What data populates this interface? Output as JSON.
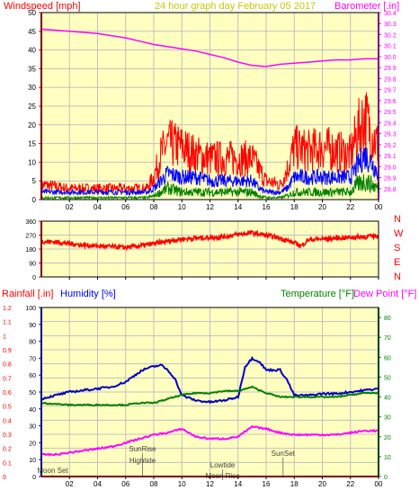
{
  "header": {
    "left_label": "Windspeed [mph]",
    "center_label": "24 hour graph day   February 05 2017",
    "right_label": "Barometer [.in]"
  },
  "colors": {
    "plot_bg": "#ffffc0",
    "grid": "#c0c0c0",
    "border": "#000000",
    "wind_axis": "#ff0000",
    "baro_axis": "#ff00ff",
    "title": "#c8c800",
    "wind_max": "#ff0000",
    "wind_avg": "#0000ff",
    "wind_min": "#008000",
    "barometer": "#ff00ff",
    "direction": "#ff0000",
    "humidity": "#0000c0",
    "temperature": "#008000",
    "dewpoint": "#ff00ff",
    "rainfall": "#ff0000",
    "bottom_axis_left": "#0000ff",
    "bottom_axis_right": "#008000",
    "event": "#000000"
  },
  "x_ticks": [
    "02",
    "04",
    "06",
    "08",
    "10",
    "12",
    "14",
    "16",
    "18",
    "20",
    "22",
    "00"
  ],
  "chart_data": [
    {
      "type": "line",
      "series": [
        {
          "name": "Windspeed",
          "axis": "wind",
          "x": [
            0,
            2,
            4,
            6,
            7.5,
            8,
            8.5,
            9,
            10,
            11,
            12,
            13,
            14,
            15,
            15.5,
            16,
            17,
            17.5,
            18,
            19,
            20,
            21,
            22,
            22.5,
            23,
            23.5,
            24
          ],
          "values": [
            4,
            3,
            3,
            3,
            3,
            6,
            12,
            15,
            14,
            12,
            11,
            11,
            11,
            11,
            8,
            5,
            4,
            8,
            14,
            13,
            14,
            13,
            12,
            18,
            22,
            18,
            14
          ]
        },
        {
          "name": "Windspeed",
          "axis": "wind",
          "x": [
            0,
            2,
            4,
            6,
            7.5,
            8,
            8.5,
            9,
            10,
            11,
            12,
            13,
            14,
            15,
            15.5,
            16,
            17,
            17.5,
            18,
            19,
            20,
            21,
            22,
            22.5,
            23,
            23.5,
            24
          ],
          "values": [
            2,
            2,
            2,
            2,
            2,
            3,
            5,
            7,
            6,
            6,
            5,
            5,
            5,
            5,
            3,
            2,
            2,
            3,
            6,
            6,
            6,
            6,
            6,
            9,
            12,
            10,
            7
          ]
        },
        {
          "name": "Windspeed",
          "axis": "wind",
          "x": [
            0,
            2,
            4,
            6,
            7.5,
            8,
            8.5,
            9,
            10,
            11,
            12,
            13,
            14,
            15,
            15.5,
            16,
            17,
            17.5,
            18,
            19,
            20,
            21,
            22,
            22.5,
            23,
            23.5,
            24
          ],
          "values": [
            0.5,
            0.5,
            0.5,
            0.5,
            0.5,
            1,
            2,
            3,
            2,
            2,
            2,
            2,
            2,
            2,
            1,
            0.5,
            0.5,
            1,
            2,
            2,
            2,
            2,
            2,
            4,
            5,
            4,
            3
          ]
        },
        {
          "name": "Barometer",
          "axis": "baro",
          "x": [
            0,
            1,
            2,
            3,
            4,
            5,
            6,
            7,
            8,
            9,
            10,
            11,
            12,
            13,
            14,
            15,
            16,
            17,
            18,
            19,
            20,
            21,
            22,
            23,
            24
          ],
          "values": [
            30.25,
            30.24,
            30.23,
            30.22,
            30.21,
            30.19,
            30.17,
            30.14,
            30.11,
            30.09,
            30.07,
            30.05,
            30.02,
            29.99,
            29.95,
            29.92,
            29.91,
            29.93,
            29.94,
            29.95,
            29.96,
            29.97,
            29.97,
            29.98,
            29.98
          ]
        }
      ],
      "axes": {
        "wind": {
          "label": "Windspeed [mph]",
          "ylim": [
            0,
            50
          ],
          "ticks": [
            0,
            5,
            10,
            15,
            20,
            25,
            30,
            35,
            40,
            45,
            50
          ]
        },
        "baro": {
          "label": "Barometer [.in]",
          "ylim": [
            28.7,
            30.4
          ],
          "ticks": [
            28.8,
            28.9,
            29.0,
            29.1,
            29.2,
            29.3,
            29.4,
            29.5,
            29.6,
            29.7,
            29.8,
            29.9,
            30.0,
            30.1,
            30.2,
            30.3,
            30.4
          ]
        },
        "xlim": [
          0,
          24
        ]
      }
    },
    {
      "type": "line",
      "series": [
        {
          "name": "Wind direction",
          "x": [
            0,
            1,
            2,
            3,
            4,
            5,
            6,
            7,
            8,
            9,
            10,
            11,
            12,
            13,
            14,
            15,
            16,
            17,
            18,
            18.5,
            19,
            20,
            21,
            22,
            23,
            24
          ],
          "values": [
            230,
            225,
            215,
            205,
            200,
            195,
            190,
            200,
            215,
            230,
            245,
            250,
            255,
            260,
            275,
            285,
            270,
            250,
            220,
            200,
            240,
            245,
            250,
            255,
            260,
            265
          ]
        }
      ],
      "axes": {
        "ylim": [
          0,
          360
        ],
        "ticks": [
          0,
          90,
          180,
          270,
          360
        ],
        "right_labels": [
          "N",
          "W",
          "S",
          "E",
          "N"
        ],
        "xlim": [
          0,
          24
        ]
      }
    },
    {
      "type": "line",
      "series": [
        {
          "name": "Humidity",
          "axis": "left",
          "x": [
            0,
            1,
            2,
            3,
            4,
            5,
            6,
            7,
            7.5,
            8,
            8.5,
            9,
            9.5,
            10,
            11,
            12,
            13,
            14,
            14.5,
            15,
            15.5,
            16,
            17,
            17.5,
            18,
            19,
            20,
            21,
            22,
            23,
            24
          ],
          "values": [
            46,
            48,
            50,
            51,
            52,
            53,
            56,
            62,
            64,
            65,
            66,
            63,
            58,
            48,
            45,
            44,
            45,
            47,
            65,
            70,
            68,
            63,
            63,
            57,
            48,
            48,
            49,
            49,
            50,
            51,
            52
          ]
        },
        {
          "name": "Temperature",
          "axis": "right",
          "x": [
            0,
            2,
            4,
            6,
            7,
            8,
            9,
            10,
            11,
            12,
            13,
            14,
            15,
            16,
            17,
            18,
            19,
            20,
            21,
            22,
            23,
            24
          ],
          "values": [
            37,
            36,
            36,
            36,
            37,
            37,
            39,
            41,
            42,
            42,
            43,
            43,
            45,
            42,
            40,
            40,
            40,
            40,
            40,
            41,
            42,
            42
          ]
        },
        {
          "name": "Dew Point",
          "axis": "right",
          "x": [
            0,
            1,
            2,
            3,
            4,
            5,
            6,
            7,
            8,
            9,
            10,
            11,
            12,
            13,
            14,
            15,
            16,
            17,
            18,
            19,
            20,
            21,
            22,
            23,
            24
          ],
          "values": [
            11,
            11,
            12,
            13,
            14,
            15,
            17,
            19,
            21,
            22,
            24,
            20,
            19,
            19,
            20,
            25,
            24,
            22,
            21,
            21,
            21,
            21,
            22,
            23,
            23
          ]
        },
        {
          "name": "Rainfall",
          "axis": "left",
          "x": [
            0,
            24
          ],
          "values": [
            0,
            0
          ]
        }
      ],
      "axes": {
        "left": {
          "label_rain": "Rainfall [.in]",
          "label_hum": "Humidity [%]",
          "ticks": [
            0,
            0.1,
            0.2,
            0.3,
            0.4,
            0.5,
            0.6,
            0.7,
            0.8,
            0.9,
            1,
            1.1,
            1.2
          ],
          "tick_labels": [
            "0",
            "0.1",
            "0.2",
            "0.3",
            "0.4",
            "0.5",
            "0.6",
            "0.7",
            "0.8",
            "0.9",
            "1",
            "1.1",
            "1.2"
          ],
          "hum_ticks": [
            0,
            10,
            20,
            30,
            40,
            50,
            60,
            70,
            80,
            90,
            100
          ],
          "ylim": [
            0,
            100
          ]
        },
        "right": {
          "label_temp": "Temperature [°F]",
          "label_dew": "Dew Point [°F]",
          "ticks": [
            0,
            10,
            20,
            30,
            40,
            50,
            60,
            70,
            80
          ],
          "ylim": [
            0,
            85
          ]
        },
        "xlim": [
          0,
          24
        ]
      },
      "events": [
        {
          "label": "SunRise",
          "x": 7.2
        },
        {
          "label": "Hightide",
          "x": 7.2
        },
        {
          "label": "Moon Set",
          "x": 0.8
        },
        {
          "label": "Lowtide",
          "x": 12.9
        },
        {
          "label": "Moon Rise",
          "x": 12.9
        },
        {
          "label": "SunSet",
          "x": 17.2
        }
      ]
    }
  ]
}
